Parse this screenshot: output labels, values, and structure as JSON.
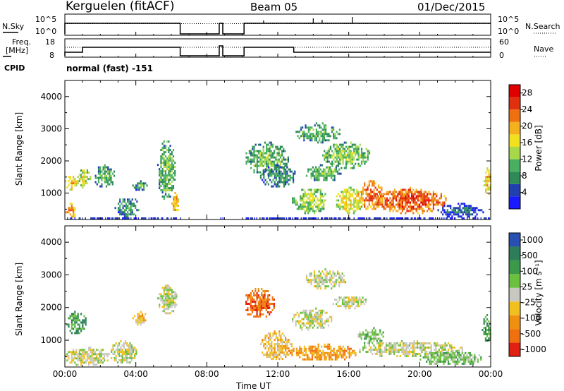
{
  "header": {
    "station": "Kerguelen (fitACF)",
    "beam": "Beam 05",
    "date": "01/Dec/2015"
  },
  "top_panels": {
    "nsky_label": "N.Sky",
    "nsearch_label": "N.Search",
    "nsky_ticks": [
      "10^5",
      "10^0"
    ],
    "nsearch_ticks": [
      "10^5",
      "10^0"
    ],
    "freq_label_1": "Freq.",
    "freq_label_2": "[MHz]",
    "freq_ticks": [
      "18",
      "8"
    ],
    "nave_label": "Nave",
    "nave_ticks": [
      "60",
      "0"
    ],
    "cpid_label": "CPID",
    "cpid_text": "normal (fast) -151"
  },
  "colors": {
    "power_scale": [
      "#1a1aff",
      "#2040b0",
      "#2e8b57",
      "#48b060",
      "#a6d84a",
      "#f0e020",
      "#f5b020",
      "#f07010",
      "#e03010",
      "#e00000"
    ],
    "velocity_scale": [
      "#2850b0",
      "#2e7d5a",
      "#3a9a4a",
      "#6cc040",
      "#c8c8c0",
      "#f0c020",
      "#f09010",
      "#f07010",
      "#e02010"
    ]
  },
  "chart_data": [
    {
      "type": "heatmap",
      "name": "power",
      "ylabel": "Slant Range [km]",
      "xlabel": "Time UT",
      "x_ticks": [
        "00:00",
        "04:00",
        "08:00",
        "12:00",
        "16:00",
        "20:00",
        "00:00"
      ],
      "y_ticks": [
        "1000",
        "2000",
        "3000",
        "4000"
      ],
      "xlim_hours": [
        0,
        24
      ],
      "ylim_km": [
        180,
        4500
      ],
      "colorbar_label": "Power [dB]",
      "colorbar_ticks": [
        "4",
        "8",
        "12",
        "16",
        "20",
        "24",
        "28"
      ],
      "colorbar_range": [
        0,
        30
      ],
      "gaps_hours": [
        [
          6.5,
          8.7
        ],
        [
          8.9,
          10.1
        ]
      ],
      "blobs": [
        {
          "t": [
            0.0,
            0.6
          ],
          "r": [
            200,
            700
          ],
          "v": 22
        },
        {
          "t": [
            0.0,
            0.7
          ],
          "r": [
            1100,
            1600
          ],
          "v": 19
        },
        {
          "t": [
            0.7,
            1.4
          ],
          "r": [
            1200,
            1800
          ],
          "v": 16
        },
        {
          "t": [
            1.6,
            2.8
          ],
          "r": [
            1200,
            1900
          ],
          "v": 11
        },
        {
          "t": [
            2.8,
            4.2
          ],
          "r": [
            300,
            900
          ],
          "v": 9
        },
        {
          "t": [
            3.8,
            4.6
          ],
          "r": [
            1100,
            1400
          ],
          "v": 9
        },
        {
          "t": [
            5.2,
            6.2
          ],
          "r": [
            800,
            2700
          ],
          "v": 12
        },
        {
          "t": [
            6.0,
            6.4
          ],
          "r": [
            400,
            1100
          ],
          "v": 20
        },
        {
          "t": [
            10.1,
            12.6
          ],
          "r": [
            1600,
            2600
          ],
          "v": 12
        },
        {
          "t": [
            11.0,
            13.0
          ],
          "r": [
            1200,
            1900
          ],
          "v": 9
        },
        {
          "t": [
            12.8,
            14.8
          ],
          "r": [
            400,
            1200
          ],
          "v": 14
        },
        {
          "t": [
            13.0,
            15.5
          ],
          "r": [
            2600,
            3200
          ],
          "v": 11
        },
        {
          "t": [
            13.5,
            15.6
          ],
          "r": [
            1400,
            1900
          ],
          "v": 12
        },
        {
          "t": [
            14.5,
            17.2
          ],
          "r": [
            1800,
            2600
          ],
          "v": 13
        },
        {
          "t": [
            15.2,
            16.8
          ],
          "r": [
            400,
            1200
          ],
          "v": 17
        },
        {
          "t": [
            16.5,
            18.0
          ],
          "r": [
            500,
            1400
          ],
          "v": 24
        },
        {
          "t": [
            17.5,
            21.5
          ],
          "r": [
            400,
            1200
          ],
          "v": 25
        },
        {
          "t": [
            21.0,
            23.6
          ],
          "r": [
            250,
            700
          ],
          "v": 6
        },
        {
          "t": [
            23.6,
            24.0
          ],
          "r": [
            900,
            1800
          ],
          "v": 19
        }
      ]
    },
    {
      "type": "heatmap",
      "name": "velocity",
      "ylabel": "Slant Range [km]",
      "xlabel": "Time UT",
      "x_ticks": [
        "00:00",
        "04:00",
        "08:00",
        "12:00",
        "16:00",
        "20:00",
        "00:00"
      ],
      "y_ticks": [
        "1000",
        "2000",
        "3000",
        "4000"
      ],
      "xlim_hours": [
        0,
        24
      ],
      "ylim_km": [
        180,
        4500
      ],
      "colorbar_label": "Velocity [m s⁻¹]",
      "colorbar_ticks": [
        "1000",
        "500",
        "100",
        "25",
        "-25",
        "-100",
        "-500",
        "-1000"
      ],
      "gaps_hours": [
        [
          6.5,
          8.7
        ],
        [
          8.9,
          10.1
        ]
      ],
      "blobs": [
        {
          "t": [
            0.0,
            1.2
          ],
          "r": [
            1200,
            1900
          ],
          "c": 2
        },
        {
          "t": [
            0.0,
            2.5
          ],
          "r": [
            250,
            800
          ],
          "c": 4
        },
        {
          "t": [
            2.5,
            4.0
          ],
          "r": [
            300,
            1000
          ],
          "c": 4
        },
        {
          "t": [
            3.8,
            4.6
          ],
          "r": [
            1500,
            1900
          ],
          "c": 5
        },
        {
          "t": [
            5.2,
            6.3
          ],
          "r": [
            1800,
            2700
          ],
          "c": 4
        },
        {
          "t": [
            10.0,
            11.8
          ],
          "r": [
            1700,
            2600
          ],
          "c": 7
        },
        {
          "t": [
            11.0,
            12.8
          ],
          "r": [
            400,
            1300
          ],
          "c": 5
        },
        {
          "t": [
            12.8,
            15.0
          ],
          "r": [
            1300,
            2000
          ],
          "c": 4
        },
        {
          "t": [
            13.5,
            15.8
          ],
          "r": [
            2600,
            3200
          ],
          "c": 4
        },
        {
          "t": [
            12.5,
            16.5
          ],
          "r": [
            400,
            900
          ],
          "c": 6
        },
        {
          "t": [
            15.0,
            17.0
          ],
          "r": [
            2000,
            2400
          ],
          "c": 4
        },
        {
          "t": [
            16.5,
            22.5
          ],
          "r": [
            500,
            1000
          ],
          "c": 4
        },
        {
          "t": [
            16.5,
            18.0
          ],
          "r": [
            900,
            1400
          ],
          "c": 3
        },
        {
          "t": [
            20.0,
            23.5
          ],
          "r": [
            250,
            700
          ],
          "c": 3
        },
        {
          "t": [
            23.5,
            24.0
          ],
          "r": [
            900,
            1800
          ],
          "c": 2
        }
      ]
    }
  ]
}
